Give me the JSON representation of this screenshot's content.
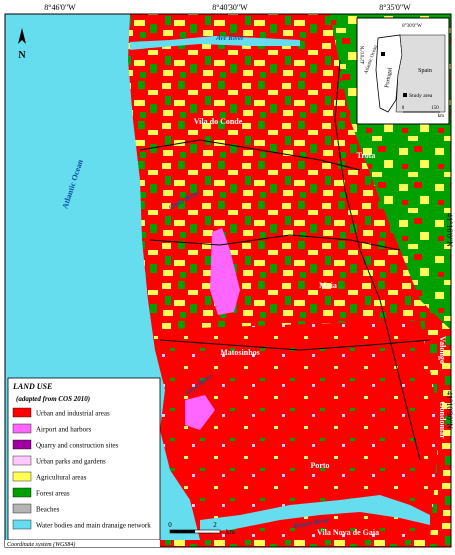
{
  "coordinates": {
    "top": [
      "8°46'0\"W",
      "8°40'30\"W",
      "8°35'0\"W"
    ],
    "right": [
      "41°16'0\"N",
      "41°10'30\"N"
    ]
  },
  "north_arrow": "N",
  "places": {
    "ocean": "Atlantic Ocean",
    "vila_do_conde": "Vila do Conde",
    "trofa": "Trofa",
    "maia": "Maia",
    "matosinhos": "Matosinhos",
    "porto": "Porto",
    "vila_nova_de_gaia": "Vila Nova de Gaia",
    "valongo": "Valongo",
    "gondomar": "Gondomar"
  },
  "rivers": {
    "ave": "Ave River",
    "onda": "Onda River",
    "leca": "Leça River",
    "douro": "Douro River"
  },
  "inset": {
    "ocean": "Atlantic Ocean",
    "country": "Portugal",
    "neighbor": "Spain",
    "study_area": "Study area",
    "scale_0": "0",
    "scale_150": "150",
    "unit": "km",
    "top_coord": "8°30'0\"W",
    "left_coord": "42°0'0\"N"
  },
  "legend": {
    "title": "LAND USE",
    "subtitle": "(adapted from COS 2010)",
    "items": [
      {
        "label": "Urban and industrial areas",
        "color": "#ff0000"
      },
      {
        "label": "Airport and harbors",
        "color": "#ff66ff"
      },
      {
        "label": "Quarry and construction sites",
        "color": "#a000a0"
      },
      {
        "label": "Urban parks and gardens",
        "color": "#ffc8ff"
      },
      {
        "label": "Agricultural areas",
        "color": "#ffff55"
      },
      {
        "label": "Forest areas",
        "color": "#00a000"
      },
      {
        "label": "Beaches",
        "color": "#b4b4b4"
      },
      {
        "label": "Water bodies and main dranaige network",
        "color": "#66ddee"
      }
    ]
  },
  "scale_bar": {
    "start": "0",
    "end": "2",
    "unit": "km"
  },
  "coordinate_system": "Coordinate system (WGS84)"
}
